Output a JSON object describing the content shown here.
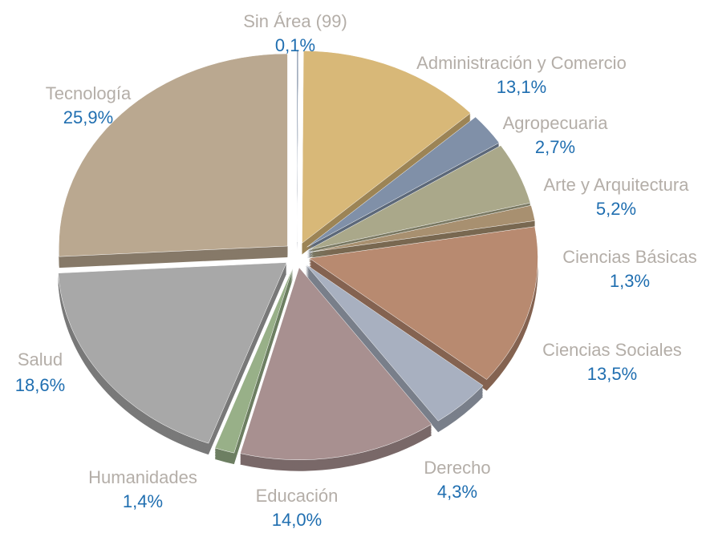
{
  "chart_data": {
    "type": "pie",
    "categories": [
      "Sin Área (99)",
      "Administración y Comercio",
      "Agropecuaria",
      "Arte y Arquitectura",
      "Ciencias Básicas",
      "Ciencias Sociales",
      "Derecho",
      "Educación",
      "Humanidades",
      "Salud",
      "Tecnología"
    ],
    "values": [
      0.1,
      13.1,
      2.7,
      5.2,
      1.3,
      13.5,
      4.3,
      14.0,
      1.4,
      18.6,
      25.9
    ],
    "value_labels": [
      "0,1%",
      "13,1%",
      "2,7%",
      "5,2%",
      "1,3%",
      "13,5%",
      "4,3%",
      "14,0%",
      "1,4%",
      "18,6%",
      "25,9%"
    ],
    "colors": [
      "#8090a8",
      "#d8b878",
      "#8090a8",
      "#aaa88a",
      "#a89070",
      "#b88a70",
      "#a8b0c0",
      "#a89090",
      "#98b088",
      "#a8a8a8",
      "#baa890"
    ]
  }
}
